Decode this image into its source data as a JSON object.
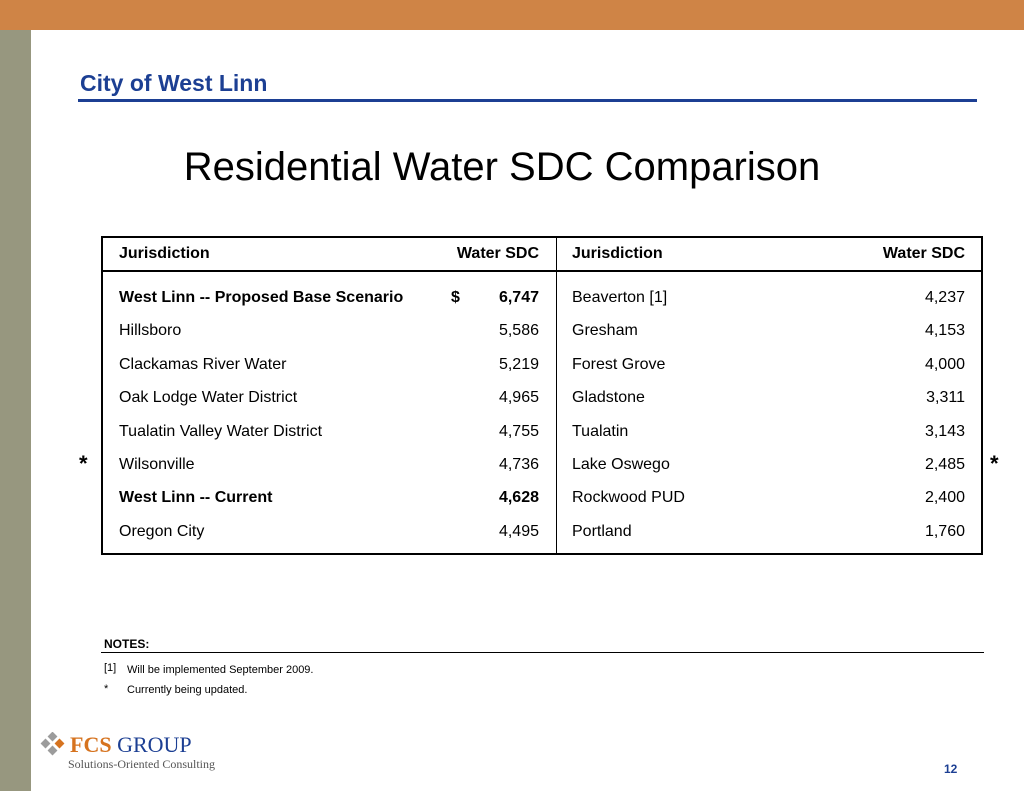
{
  "header": {
    "org_title": "City of West Linn",
    "slide_title": "Residential Water SDC Comparison"
  },
  "table": {
    "columns": [
      "Jurisdiction",
      "Water SDC",
      "Jurisdiction",
      "Water SDC"
    ],
    "left_rows": [
      {
        "jurisdiction": "West Linn -- Proposed Base Scenario",
        "currency": "$",
        "sdc": "6,747",
        "bold": true
      },
      {
        "jurisdiction": "Hillsboro",
        "currency": "",
        "sdc": "5,586",
        "bold": false
      },
      {
        "jurisdiction": "Clackamas River Water",
        "currency": "",
        "sdc": "5,219",
        "bold": false
      },
      {
        "jurisdiction": "Oak Lodge Water District",
        "currency": "",
        "sdc": "4,965",
        "bold": false
      },
      {
        "jurisdiction": "Tualatin Valley Water District",
        "currency": "",
        "sdc": "4,755",
        "bold": false
      },
      {
        "jurisdiction": "Wilsonville",
        "currency": "",
        "sdc": "4,736",
        "bold": false
      },
      {
        "jurisdiction": "West Linn -- Current",
        "currency": "",
        "sdc": "4,628",
        "bold": true
      },
      {
        "jurisdiction": "Oregon City",
        "currency": "",
        "sdc": "4,495",
        "bold": false
      }
    ],
    "right_rows": [
      {
        "jurisdiction": "Beaverton  [1]",
        "sdc": "4,237"
      },
      {
        "jurisdiction": "Gresham",
        "sdc": "4,153"
      },
      {
        "jurisdiction": "Forest Grove",
        "sdc": "4,000"
      },
      {
        "jurisdiction": "Gladstone",
        "sdc": "3,311"
      },
      {
        "jurisdiction": "Tualatin",
        "sdc": "3,143"
      },
      {
        "jurisdiction": "Lake Oswego",
        "sdc": "2,485"
      },
      {
        "jurisdiction": "Rockwood PUD",
        "sdc": "2,400"
      },
      {
        "jurisdiction": "Portland",
        "sdc": "1,760"
      }
    ],
    "left_star": "*",
    "right_star": "*"
  },
  "notes": {
    "title": "NOTES:",
    "items": [
      {
        "marker": "[1]",
        "text": "Will be implemented September 2009."
      },
      {
        "marker": "*",
        "text": "Currently being updated."
      }
    ]
  },
  "footer": {
    "logo_name_1": "FCS",
    "logo_name_2": " GROUP",
    "logo_tagline": "Solutions-Oriented Consulting",
    "page_number": "12"
  },
  "colors": {
    "top_bar": "#cf8446",
    "left_bar": "#97977f",
    "header_blue": "#1c3f93"
  }
}
